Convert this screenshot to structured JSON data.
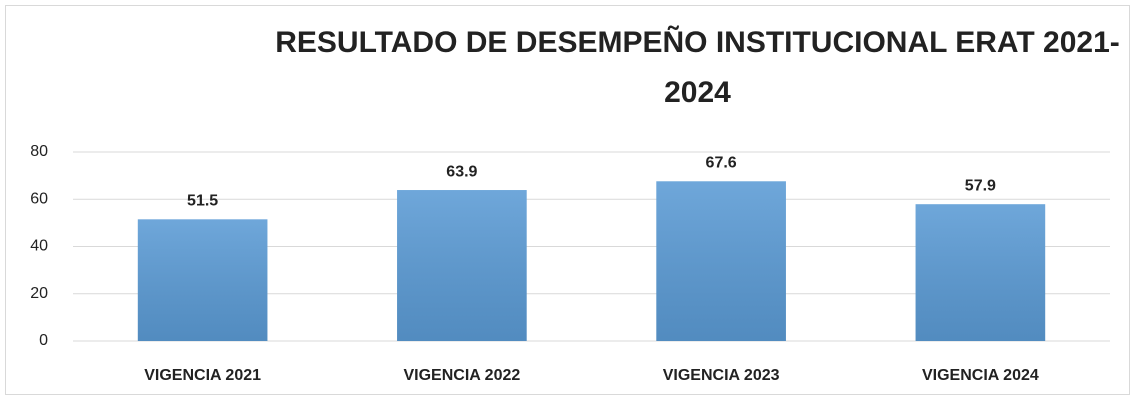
{
  "chart_data": {
    "type": "bar",
    "title": "RESULTADO DE DESEMPEÑO INSTITUCIONAL ERAT 2021-2024",
    "categories": [
      "VIGENCIA 2021",
      "VIGENCIA 2022",
      "VIGENCIA 2023",
      "VIGENCIA 2024"
    ],
    "values": [
      51.5,
      63.9,
      67.6,
      57.9
    ],
    "color": "#5b9bd5",
    "ylim": [
      0,
      80
    ],
    "yticks": [
      0,
      20,
      40,
      60,
      80
    ],
    "grid": true
  }
}
